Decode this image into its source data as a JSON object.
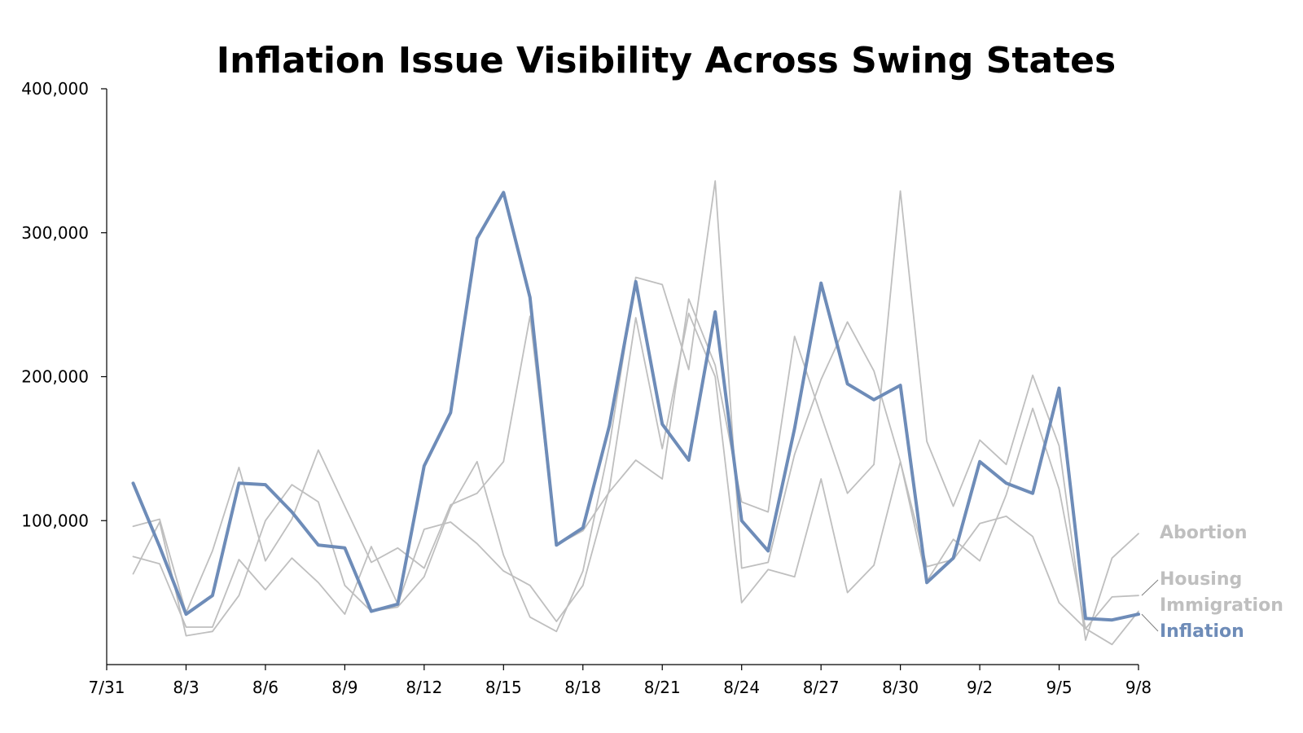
{
  "chart_data": {
    "type": "line",
    "title": "Inflation Issue Visibility Across Swing States",
    "xlabel": "",
    "ylabel": "",
    "ylim": [
      0,
      400000
    ],
    "yticks": [
      100000,
      200000,
      300000,
      400000
    ],
    "ytick_labels": [
      "100,000",
      "200,000",
      "300,000",
      "400,000"
    ],
    "xlim": [
      0,
      39
    ],
    "xticks": [
      0,
      3,
      6,
      9,
      12,
      15,
      18,
      21,
      24,
      27,
      30,
      33,
      36,
      39
    ],
    "xtick_labels": [
      "7/31",
      "8/3",
      "8/6",
      "8/9",
      "8/12",
      "8/15",
      "8/18",
      "8/21",
      "8/24",
      "8/27",
      "8/30",
      "9/2",
      "9/5",
      "9/8"
    ],
    "x": [
      1,
      2,
      3,
      4,
      5,
      6,
      7,
      8,
      9,
      10,
      11,
      12,
      13,
      14,
      15,
      16,
      17,
      18,
      19,
      20,
      21,
      22,
      23,
      24,
      25,
      26,
      27,
      28,
      29,
      30,
      31,
      32,
      33,
      34,
      35,
      36,
      37,
      38,
      39
    ],
    "x_dates": [
      "8/1",
      "8/2",
      "8/3",
      "8/4",
      "8/5",
      "8/6",
      "8/7",
      "8/8",
      "8/9",
      "8/10",
      "8/11",
      "8/12",
      "8/13",
      "8/14",
      "8/15",
      "8/16",
      "8/17",
      "8/18",
      "8/19",
      "8/20",
      "8/21",
      "8/22",
      "8/23",
      "8/24",
      "8/25",
      "8/26",
      "8/27",
      "8/28",
      "8/29",
      "8/30",
      "8/31",
      "9/1",
      "9/2",
      "9/3",
      "9/4",
      "9/5",
      "9/6",
      "9/7",
      "9/8"
    ],
    "grid": false,
    "legend_position": "right, at line ends",
    "series": [
      {
        "name": "Abortion",
        "color": "#bfbfbf",
        "values": [
          96000,
          101000,
          36000,
          79000,
          137000,
          72000,
          101000,
          149000,
          110000,
          71000,
          81000,
          67000,
          111000,
          119000,
          141000,
          242000,
          83000,
          93000,
          120000,
          142000,
          129000,
          254000,
          208000,
          113000,
          106000,
          228000,
          173000,
          119000,
          139000,
          329000,
          155000,
          110000,
          156000,
          139000,
          201000,
          152000,
          17000,
          74000,
          91000
        ]
      },
      {
        "name": "Housing",
        "color": "#bfbfbf",
        "values": [
          75000,
          70000,
          26000,
          26000,
          73000,
          52000,
          74000,
          57000,
          35000,
          82000,
          42000,
          94000,
          99000,
          84000,
          65000,
          55000,
          30000,
          55000,
          122000,
          241000,
          150000,
          244000,
          200000,
          43000,
          66000,
          61000,
          129000,
          50000,
          69000,
          141000,
          68000,
          73000,
          98000,
          103000,
          89000,
          43000,
          25000,
          47000,
          48000
        ]
      },
      {
        "name": "Immigration",
        "color": "#bfbfbf",
        "values": [
          63000,
          99000,
          20000,
          23000,
          48000,
          100000,
          125000,
          113000,
          55000,
          37000,
          40000,
          61000,
          109000,
          141000,
          76000,
          33000,
          23000,
          65000,
          152000,
          269000,
          264000,
          205000,
          336000,
          67000,
          71000,
          146000,
          198000,
          238000,
          204000,
          141000,
          58000,
          87000,
          72000,
          118000,
          178000,
          122000,
          25000,
          14000,
          37000
        ]
      },
      {
        "name": "Inflation",
        "color": "#6e8cb8",
        "values": [
          126000,
          82000,
          35000,
          48000,
          126000,
          125000,
          106000,
          83000,
          81000,
          37000,
          42000,
          138000,
          175000,
          296000,
          328000,
          255000,
          83000,
          95000,
          166000,
          266000,
          167000,
          142000,
          245000,
          100000,
          79000,
          164000,
          265000,
          195000,
          184000,
          194000,
          57000,
          74000,
          141000,
          126000,
          119000,
          192000,
          32000,
          31000,
          35000
        ]
      }
    ]
  }
}
